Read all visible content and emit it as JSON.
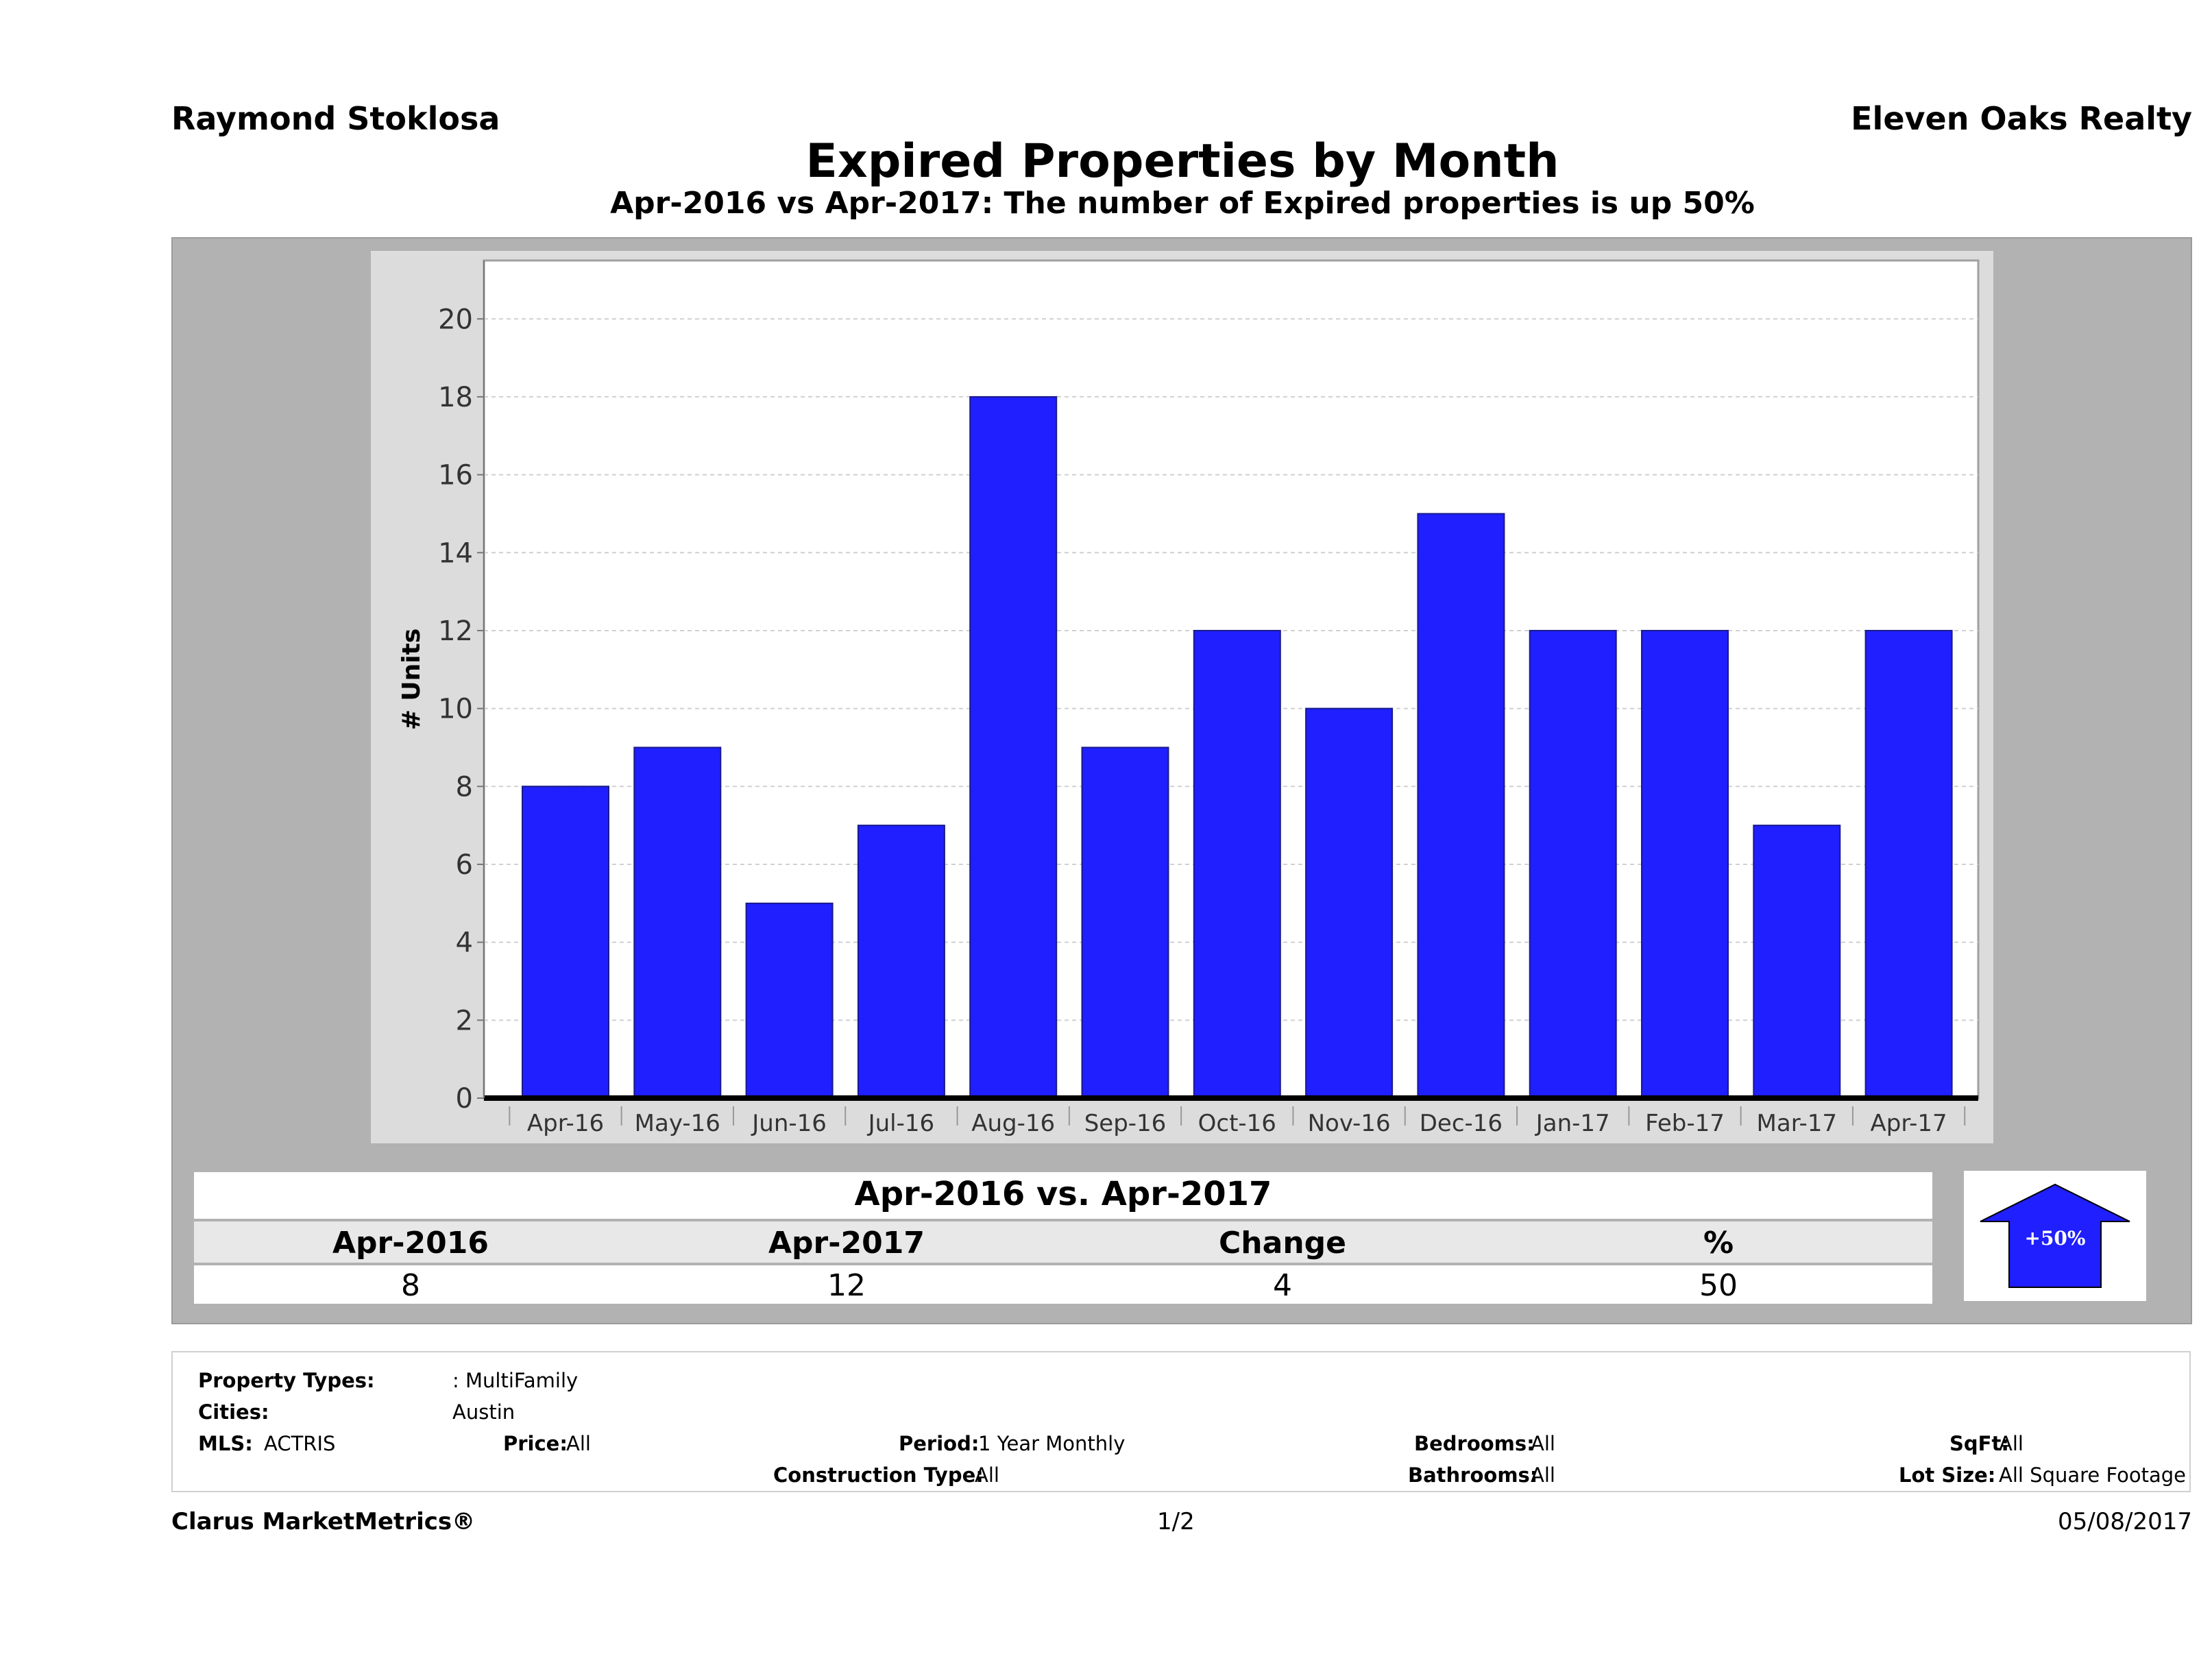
{
  "header": {
    "agent_name": "Raymond Stoklosa",
    "company": "Eleven Oaks Realty",
    "title": "Expired Properties by Month",
    "subtitle": "Apr-2016 vs Apr-2017: The number of Expired  properties is up 50%"
  },
  "chart_data": {
    "type": "bar",
    "title": "Expired Properties by Month",
    "subtitle": "Apr-2016 vs Apr-2017: The number of Expired  properties is up 50%",
    "xlabel": "",
    "ylabel": "# Units",
    "categories": [
      "Apr-16",
      "May-16",
      "Jun-16",
      "Jul-16",
      "Aug-16",
      "Sep-16",
      "Oct-16",
      "Nov-16",
      "Dec-16",
      "Jan-17",
      "Feb-17",
      "Mar-17",
      "Apr-17"
    ],
    "values": [
      8,
      9,
      5,
      7,
      18,
      9,
      12,
      10,
      15,
      12,
      12,
      7,
      12
    ],
    "ylim": [
      0,
      21.5
    ],
    "yticks": [
      0,
      2,
      4,
      6,
      8,
      10,
      12,
      14,
      16,
      18,
      20
    ],
    "grid": true,
    "legend": "none",
    "bar_color": "#1f1fff"
  },
  "comparison": {
    "title": "Apr-2016 vs. Apr-2017",
    "headers": [
      "Apr-2016",
      "Apr-2017",
      "Change",
      "%"
    ],
    "values": [
      "8",
      "12",
      "4",
      "50"
    ],
    "badge_label": "+50%",
    "badge_color": "#1f1fff"
  },
  "filters": {
    "property_types_label": "Property Types:",
    "property_types_value": ": MultiFamily",
    "cities_label": "Cities:",
    "cities_value": "Austin",
    "mls_label": "MLS:",
    "mls_value": "ACTRIS",
    "price_label": "Price:",
    "price_value": "All",
    "period_label": "Period:",
    "period_value": "1 Year Monthly",
    "construction_label": "Construction Type:",
    "construction_value": "All",
    "bedrooms_label": "Bedrooms:",
    "bedrooms_value": "All",
    "bathrooms_label": "Bathrooms:",
    "bathrooms_value": "All",
    "sqft_label": "SqFt:",
    "sqft_value": "All",
    "lot_size_label": "Lot Size:",
    "lot_size_value": "All Square Footage"
  },
  "footer": {
    "brand": "Clarus MarketMetrics®",
    "page": "1/2",
    "date": "05/08/2017"
  }
}
